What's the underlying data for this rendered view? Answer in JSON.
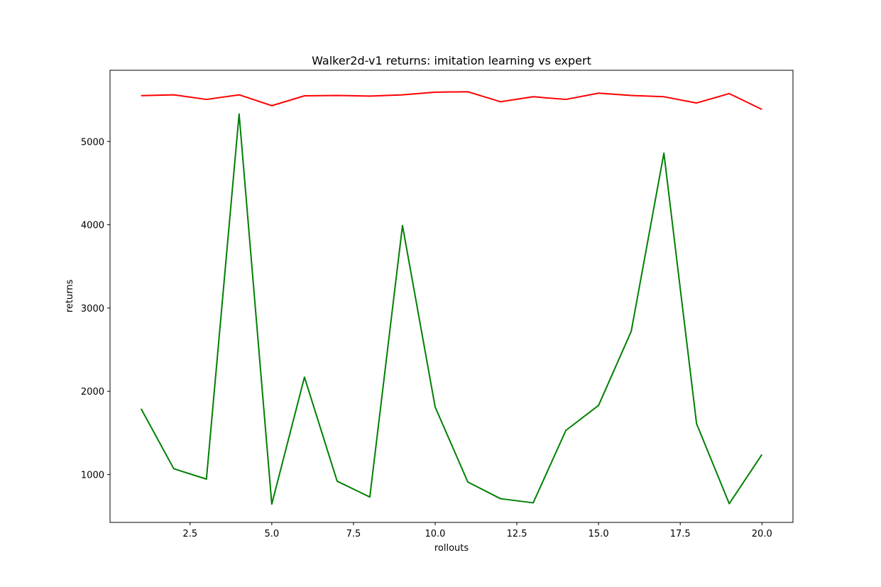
{
  "chart_data": {
    "type": "line",
    "title": "Walker2d-v1 returns: imitation learning vs expert",
    "xlabel": "rollouts",
    "ylabel": "returns",
    "xlim": [
      0.05,
      20.95
    ],
    "ylim": [
      425,
      5855
    ],
    "xticks": [
      2.5,
      5.0,
      7.5,
      10.0,
      12.5,
      15.0,
      17.5,
      20.0
    ],
    "xtick_labels": [
      "2.5",
      "5.0",
      "7.5",
      "10.0",
      "12.5",
      "15.0",
      "17.5",
      "20.0"
    ],
    "yticks": [
      1000,
      2000,
      3000,
      4000,
      5000
    ],
    "ytick_labels": [
      "1000",
      "2000",
      "3000",
      "4000",
      "5000"
    ],
    "grid": false,
    "x": [
      1,
      2,
      3,
      4,
      5,
      6,
      7,
      8,
      9,
      10,
      11,
      12,
      13,
      14,
      15,
      16,
      17,
      18,
      19,
      20
    ],
    "series": [
      {
        "color": "#ff0000",
        "values": [
          5550,
          5560,
          5505,
          5560,
          5430,
          5548,
          5552,
          5545,
          5560,
          5592,
          5597,
          5477,
          5537,
          5505,
          5580,
          5552,
          5537,
          5462,
          5575,
          5385
        ]
      },
      {
        "color": "#008000",
        "values": [
          1790,
          1070,
          945,
          5330,
          645,
          2170,
          920,
          730,
          3990,
          1810,
          910,
          710,
          660,
          1530,
          1830,
          2720,
          4860,
          1610,
          650,
          1240
        ]
      }
    ]
  }
}
